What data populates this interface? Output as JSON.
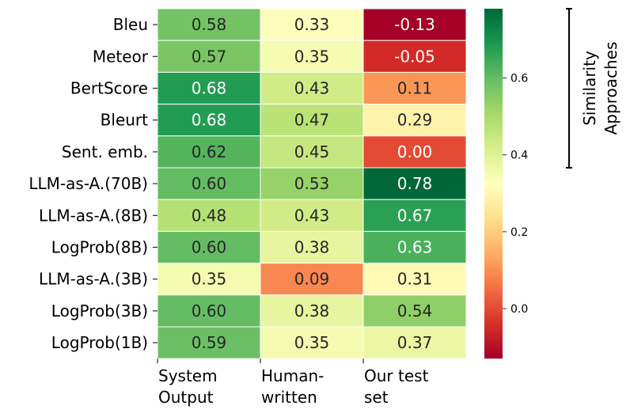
{
  "chart_data": {
    "type": "heatmap",
    "title": "",
    "xlabel": "",
    "ylabel": "",
    "columns": [
      "System Output",
      "Human-written",
      "Our test set"
    ],
    "column_label_lines": [
      [
        "System",
        "Output"
      ],
      [
        "Human-",
        "written"
      ],
      [
        "Our test",
        "set"
      ]
    ],
    "rows": [
      "Bleu",
      "Meteor",
      "BertScore",
      "Bleurt",
      "Sent. emb.",
      "LLM-as-A.(70B)",
      "LLM-as-A.(8B)",
      "LogProb(8B)",
      "LLM-as-A.(3B)",
      "LogProb(3B)",
      "LogProb(1B)"
    ],
    "values": [
      [
        0.58,
        0.33,
        -0.13
      ],
      [
        0.57,
        0.35,
        -0.05
      ],
      [
        0.68,
        0.43,
        0.11
      ],
      [
        0.68,
        0.47,
        0.29
      ],
      [
        0.62,
        0.45,
        0.0
      ],
      [
        0.6,
        0.53,
        0.78
      ],
      [
        0.48,
        0.43,
        0.67
      ],
      [
        0.6,
        0.38,
        0.63
      ],
      [
        0.35,
        0.09,
        0.31
      ],
      [
        0.6,
        0.38,
        0.54
      ],
      [
        0.59,
        0.35,
        0.37
      ]
    ],
    "colormap": "RdYlGn",
    "vmin": -0.13,
    "vmax": 0.78,
    "colorbar_ticks": [
      0.0,
      0.2,
      0.4,
      0.6
    ],
    "colorbar_tick_labels": [
      "0.0",
      "0.2",
      "0.4",
      "0.6"
    ],
    "bracket_label_lines": [
      "Similarity",
      "Approaches"
    ],
    "bracket_rows": [
      "Bleu",
      "Sent. emb."
    ]
  }
}
